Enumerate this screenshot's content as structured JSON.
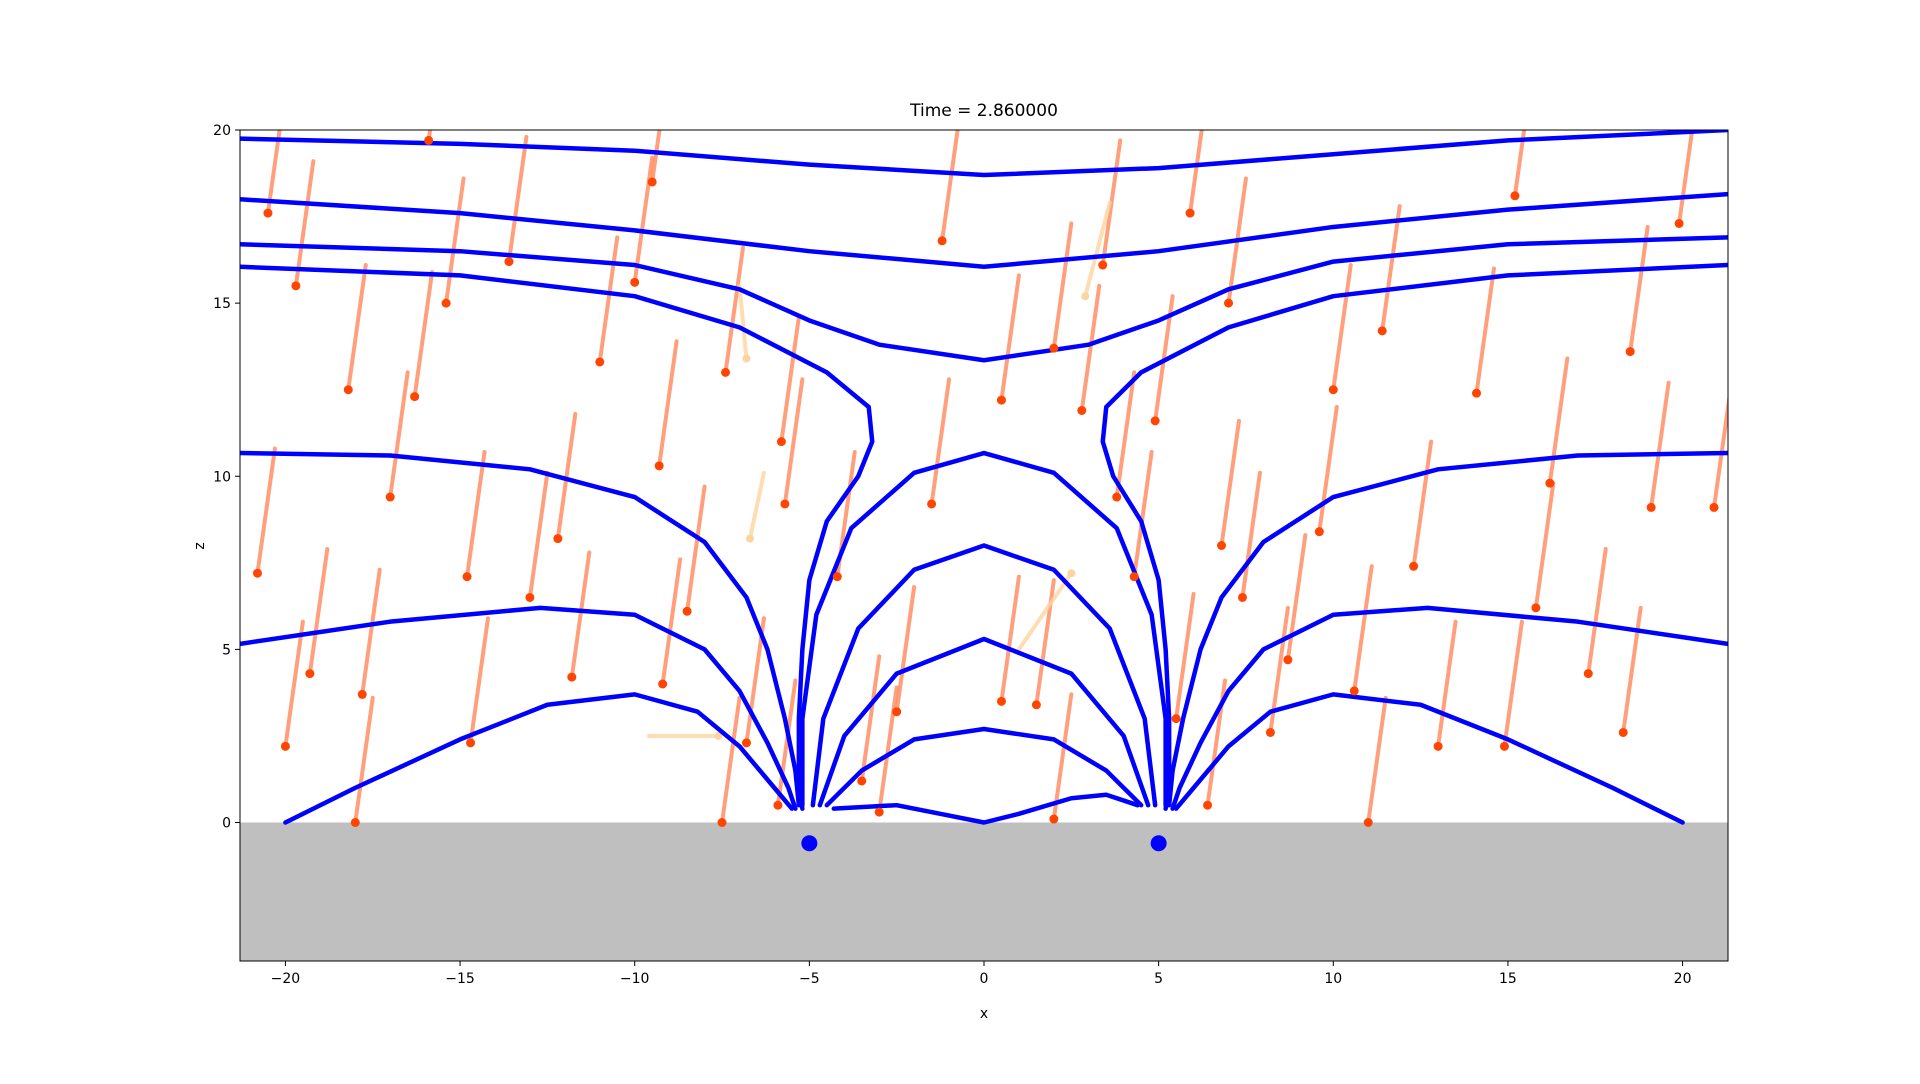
{
  "chart_data": {
    "type": "field",
    "title": "Time = 2.860000",
    "xlabel": "x",
    "ylabel": "z",
    "xlim": [
      -21.3,
      21.3
    ],
    "ylim": [
      -4,
      20
    ],
    "xticks": [
      {
        "value": -20,
        "label": "−20"
      },
      {
        "value": -15,
        "label": "−15"
      },
      {
        "value": -10,
        "label": "−10"
      },
      {
        "value": -5,
        "label": "−5"
      },
      0,
      5,
      10,
      15,
      20
    ],
    "yticks": [
      0,
      5,
      10,
      15,
      20
    ],
    "ground_color": "#bfbfbf",
    "sources": {
      "color": "#0000ff",
      "x": [
        -5,
        5
      ],
      "y": [
        -0.6,
        -0.6
      ]
    },
    "field_lines": {
      "color": "#0000ff",
      "lines": [
        {
          "x": [
            -21.3,
            -15,
            -10,
            -5,
            0,
            5,
            10,
            15,
            21.3
          ],
          "y": [
            19.75,
            19.6,
            19.4,
            19.0,
            18.7,
            18.9,
            19.3,
            19.7,
            20.0
          ]
        },
        {
          "x": [
            -21.3,
            -15,
            -10,
            -5,
            0,
            5,
            10,
            15,
            21.3
          ],
          "y": [
            18.0,
            17.6,
            17.1,
            16.5,
            16.05,
            16.5,
            17.2,
            17.7,
            18.15
          ]
        },
        {
          "x": [
            -21.3,
            -15,
            -10,
            -7,
            -5,
            -3,
            0,
            3,
            5,
            7,
            10,
            15,
            21.3
          ],
          "y": [
            16.7,
            16.5,
            16.1,
            15.4,
            14.5,
            13.8,
            13.35,
            13.8,
            14.5,
            15.4,
            16.2,
            16.7,
            16.9
          ]
        },
        {
          "x": [
            -21.3,
            -15,
            -10,
            -7,
            -4.5,
            -3.3,
            -3.2,
            -3.6,
            -4.5,
            -5.0,
            -5.2,
            -5.3,
            -5.3,
            -5.2
          ],
          "y": [
            16.05,
            15.8,
            15.2,
            14.3,
            13.0,
            12.0,
            11.0,
            10.0,
            8.7,
            7.0,
            5.0,
            3.0,
            1.0,
            0.4
          ]
        },
        {
          "x": [
            21.3,
            15,
            10,
            7,
            4.5,
            3.5,
            3.4,
            3.7,
            4.5,
            5.0,
            5.2,
            5.3,
            5.3,
            5.2
          ],
          "y": [
            16.1,
            15.8,
            15.2,
            14.3,
            13.0,
            12.0,
            11.0,
            10.0,
            8.7,
            7.0,
            5.0,
            3.0,
            1.0,
            0.4
          ]
        },
        {
          "x": [
            -21.3,
            -17,
            -13,
            -10,
            -8,
            -6.8,
            -6.2,
            -5.7,
            -5.4,
            -5.3
          ],
          "y": [
            10.67,
            10.6,
            10.2,
            9.4,
            8.1,
            6.5,
            5.0,
            3.0,
            1.5,
            0.5
          ]
        },
        {
          "x": [
            21.3,
            17,
            13,
            10,
            8,
            6.8,
            6.2,
            5.7,
            5.4,
            5.3
          ],
          "y": [
            10.67,
            10.6,
            10.2,
            9.4,
            8.1,
            6.5,
            5.0,
            3.0,
            1.5,
            0.5
          ]
        },
        {
          "x": [
            -21.3,
            -17,
            -12.7,
            -10,
            -8,
            -7,
            -6.2,
            -5.6,
            -5.4
          ],
          "y": [
            5.16,
            5.8,
            6.2,
            6.0,
            5.0,
            3.8,
            2.3,
            1.0,
            0.4
          ]
        },
        {
          "x": [
            21.3,
            17,
            12.7,
            10,
            8,
            7,
            6.2,
            5.6,
            5.4
          ],
          "y": [
            5.16,
            5.8,
            6.2,
            6.0,
            5.0,
            3.8,
            2.3,
            1.0,
            0.4
          ]
        },
        {
          "x": [
            -20,
            -18,
            -15,
            -12.5,
            -10,
            -8.2,
            -7,
            -6,
            -5.5
          ],
          "y": [
            0,
            1,
            2.4,
            3.4,
            3.7,
            3.2,
            2.2,
            1,
            0.4
          ]
        },
        {
          "x": [
            20,
            18,
            15,
            12.5,
            10,
            8.2,
            7,
            6,
            5.5
          ],
          "y": [
            0,
            1,
            2.4,
            3.4,
            3.7,
            3.2,
            2.2,
            1,
            0.4
          ]
        },
        {
          "x": [
            -5.2,
            -5.2,
            -4.8,
            -3.8,
            -2,
            0,
            2,
            3.8,
            4.8,
            5.2,
            5.2
          ],
          "y": [
            0.5,
            3,
            6,
            8.5,
            10.1,
            10.67,
            10.1,
            8.5,
            6,
            3,
            0.5
          ]
        },
        {
          "x": [
            -4.9,
            -4.6,
            -3.6,
            -2,
            0,
            2,
            3.6,
            4.6,
            4.9
          ],
          "y": [
            0.5,
            3,
            5.6,
            7.3,
            8.0,
            7.3,
            5.6,
            3,
            0.5
          ]
        },
        {
          "x": [
            -4.7,
            -4,
            -2.5,
            0,
            2.5,
            4,
            4.7
          ],
          "y": [
            0.5,
            2.5,
            4.3,
            5.3,
            4.3,
            2.5,
            0.5
          ]
        },
        {
          "x": [
            -4.5,
            -3.5,
            -2,
            0,
            2,
            3.5,
            4.5
          ],
          "y": [
            0.5,
            1.5,
            2.4,
            2.7,
            2.4,
            1.5,
            0.5
          ]
        },
        {
          "x": [
            -4.3,
            -2.5,
            -1,
            0,
            1,
            2.5,
            3.5,
            4.4
          ],
          "y": [
            0.4,
            0.5,
            0.2,
            0,
            0.25,
            0.7,
            0.8,
            0.5
          ]
        }
      ]
    },
    "particles": {
      "trail_color": "#ff7f50",
      "dot_color": "#ff4500",
      "trails": [
        {
          "x": [
            -20.0,
            -20.5
          ],
          "y": [
            21.2,
            17.6
          ]
        },
        {
          "x": [
            -19.2,
            -19.7
          ],
          "y": [
            19.1,
            15.5
          ]
        },
        {
          "x": [
            -17.7,
            -18.2
          ],
          "y": [
            16.1,
            12.5
          ]
        },
        {
          "x": [
            -20.3,
            -20.8
          ],
          "y": [
            10.8,
            7.2
          ]
        },
        {
          "x": [
            -18.8,
            -19.3
          ],
          "y": [
            7.9,
            4.3
          ]
        },
        {
          "x": [
            -19.5,
            -20.0
          ],
          "y": [
            5.8,
            2.2
          ]
        },
        {
          "x": [
            -17.3,
            -17.8
          ],
          "y": [
            7.3,
            3.7
          ]
        },
        {
          "x": [
            -16.5,
            -17.0
          ],
          "y": [
            13.0,
            9.4
          ]
        },
        {
          "x": [
            -15.8,
            -16.3
          ],
          "y": [
            15.9,
            12.3
          ]
        },
        {
          "x": [
            -15.4,
            -15.9
          ],
          "y": [
            23.3,
            19.7
          ]
        },
        {
          "x": [
            -14.9,
            -15.4
          ],
          "y": [
            18.6,
            15.0
          ]
        },
        {
          "x": [
            -13.1,
            -13.6
          ],
          "y": [
            19.8,
            16.2
          ]
        },
        {
          "x": [
            -14.3,
            -14.8
          ],
          "y": [
            10.7,
            7.1
          ]
        },
        {
          "x": [
            -14.2,
            -14.7
          ],
          "y": [
            5.9,
            2.3
          ]
        },
        {
          "x": [
            -12.5,
            -13.0
          ],
          "y": [
            10.1,
            6.5
          ]
        },
        {
          "x": [
            -11.7,
            -12.2
          ],
          "y": [
            11.8,
            8.2
          ]
        },
        {
          "x": [
            -11.3,
            -11.8
          ],
          "y": [
            7.8,
            4.2
          ]
        },
        {
          "x": [
            -10.5,
            -11.0
          ],
          "y": [
            16.9,
            13.3
          ]
        },
        {
          "x": [
            -9.5,
            -10.0
          ],
          "y": [
            19.2,
            15.6
          ]
        },
        {
          "x": [
            -9.0,
            -9.5
          ],
          "y": [
            22.1,
            18.5
          ]
        },
        {
          "x": [
            -8.8,
            -9.3
          ],
          "y": [
            13.9,
            10.3
          ]
        },
        {
          "x": [
            -8.7,
            -9.2
          ],
          "y": [
            7.6,
            4.0
          ]
        },
        {
          "x": [
            -8.0,
            -8.5
          ],
          "y": [
            9.7,
            6.1
          ]
        },
        {
          "x": [
            -6.9,
            -7.4
          ],
          "y": [
            16.6,
            13.0
          ]
        },
        {
          "x": [
            -6.3,
            -6.8
          ],
          "y": [
            5.9,
            2.3
          ]
        },
        {
          "x": [
            -5.3,
            -5.8
          ],
          "y": [
            14.6,
            11.0
          ]
        },
        {
          "x": [
            -5.2,
            -5.7
          ],
          "y": [
            12.8,
            9.2
          ]
        },
        {
          "x": [
            -5.4,
            -5.9
          ],
          "y": [
            4.1,
            0.5
          ]
        },
        {
          "x": [
            -3.7,
            -4.2
          ],
          "y": [
            10.7,
            7.1
          ]
        },
        {
          "x": [
            -3.0,
            -3.5
          ],
          "y": [
            4.8,
            1.2
          ]
        },
        {
          "x": [
            -2.0,
            -2.5
          ],
          "y": [
            6.8,
            3.2
          ]
        },
        {
          "x": [
            -1.0,
            -1.5
          ],
          "y": [
            12.8,
            9.2
          ]
        },
        {
          "x": [
            -0.7,
            -1.2
          ],
          "y": [
            20.4,
            16.8
          ]
        },
        {
          "x": [
            1.0,
            0.5
          ],
          "y": [
            15.8,
            12.2
          ]
        },
        {
          "x": [
            1.0,
            0.5
          ],
          "y": [
            7.1,
            3.5
          ]
        },
        {
          "x": [
            2.0,
            1.5
          ],
          "y": [
            7.0,
            3.4
          ]
        },
        {
          "x": [
            2.5,
            2.0
          ],
          "y": [
            17.3,
            13.7
          ]
        },
        {
          "x": [
            3.3,
            2.8
          ],
          "y": [
            15.5,
            11.9
          ]
        },
        {
          "x": [
            3.9,
            3.4
          ],
          "y": [
            19.7,
            16.1
          ]
        },
        {
          "x": [
            4.3,
            3.8
          ],
          "y": [
            13.0,
            9.4
          ]
        },
        {
          "x": [
            4.8,
            4.3
          ],
          "y": [
            10.7,
            7.1
          ]
        },
        {
          "x": [
            5.4,
            4.9
          ],
          "y": [
            15.2,
            11.6
          ]
        },
        {
          "x": [
            6.0,
            5.5
          ],
          "y": [
            6.6,
            3.0
          ]
        },
        {
          "x": [
            6.4,
            5.9
          ],
          "y": [
            21.2,
            17.6
          ]
        },
        {
          "x": [
            6.9,
            6.4
          ],
          "y": [
            4.1,
            0.5
          ]
        },
        {
          "x": [
            7.5,
            7.0
          ],
          "y": [
            18.6,
            15.0
          ]
        },
        {
          "x": [
            7.3,
            6.8
          ],
          "y": [
            11.6,
            8.0
          ]
        },
        {
          "x": [
            7.9,
            7.4
          ],
          "y": [
            10.1,
            6.5
          ]
        },
        {
          "x": [
            8.7,
            8.2
          ],
          "y": [
            6.2,
            2.6
          ]
        },
        {
          "x": [
            9.2,
            8.7
          ],
          "y": [
            8.3,
            4.7
          ]
        },
        {
          "x": [
            10.1,
            9.6
          ],
          "y": [
            12.0,
            8.4
          ]
        },
        {
          "x": [
            10.5,
            10.0
          ],
          "y": [
            16.1,
            12.5
          ]
        },
        {
          "x": [
            11.1,
            10.6
          ],
          "y": [
            7.4,
            3.8
          ]
        },
        {
          "x": [
            11.9,
            11.4
          ],
          "y": [
            17.8,
            14.2
          ]
        },
        {
          "x": [
            12.8,
            12.3
          ],
          "y": [
            11.0,
            7.4
          ]
        },
        {
          "x": [
            13.5,
            13.0
          ],
          "y": [
            5.8,
            2.2
          ]
        },
        {
          "x": [
            14.6,
            14.1
          ],
          "y": [
            16.0,
            12.4
          ]
        },
        {
          "x": [
            15.4,
            14.9
          ],
          "y": [
            5.8,
            2.2
          ]
        },
        {
          "x": [
            15.7,
            15.2
          ],
          "y": [
            21.7,
            18.1
          ]
        },
        {
          "x": [
            16.3,
            15.8
          ],
          "y": [
            9.8,
            6.2
          ]
        },
        {
          "x": [
            16.7,
            16.2
          ],
          "y": [
            13.4,
            9.8
          ]
        },
        {
          "x": [
            17.8,
            17.3
          ],
          "y": [
            7.9,
            4.3
          ]
        },
        {
          "x": [
            18.8,
            18.3
          ],
          "y": [
            6.2,
            2.6
          ]
        },
        {
          "x": [
            19.0,
            18.5
          ],
          "y": [
            17.2,
            13.6
          ]
        },
        {
          "x": [
            19.6,
            19.1
          ],
          "y": [
            12.7,
            9.1
          ]
        },
        {
          "x": [
            20.4,
            19.9
          ],
          "y": [
            20.9,
            17.3
          ]
        },
        {
          "x": [
            21.4,
            20.9
          ],
          "y": [
            12.7,
            9.1
          ]
        },
        {
          "x": [
            -2.5,
            -3.0
          ],
          "y": [
            3.9,
            0.3
          ]
        },
        {
          "x": [
            2.5,
            2.0
          ],
          "y": [
            3.7,
            0.1
          ]
        },
        {
          "x": [
            -7.0,
            -7.5
          ],
          "y": [
            3.6,
            0.0
          ]
        },
        {
          "x": [
            11.5,
            11.0
          ],
          "y": [
            3.6,
            0.0
          ]
        },
        {
          "x": [
            -17.5,
            -18.0
          ],
          "y": [
            3.6,
            0.0
          ]
        }
      ]
    },
    "faded_particles": {
      "color": "#fdd49e",
      "trails": [
        {
          "x": [
            -9.6,
            -7.6
          ],
          "y": [
            2.5,
            2.5
          ]
        },
        {
          "x": [
            -7.0,
            -6.8
          ],
          "y": [
            15.5,
            13.4
          ]
        },
        {
          "x": [
            3.6,
            2.9
          ],
          "y": [
            17.9,
            15.2
          ]
        },
        {
          "x": [
            -6.3,
            -6.7
          ],
          "y": [
            10.1,
            8.2
          ]
        },
        {
          "x": [
            1.0,
            2.5
          ],
          "y": [
            5.0,
            7.2
          ]
        }
      ]
    }
  }
}
